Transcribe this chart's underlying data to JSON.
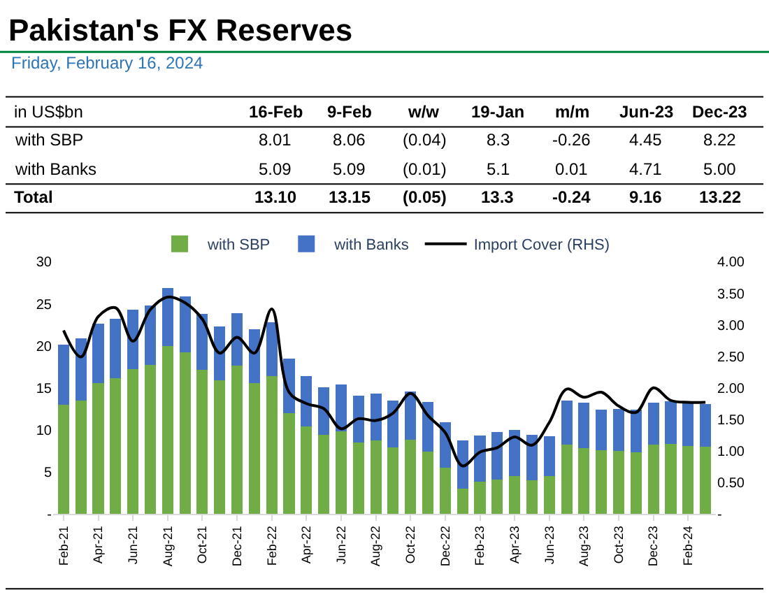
{
  "chart_data": [
    {
      "type": "other",
      "title": "Pakistan's FX Reserves",
      "subtitle": "Friday, February 16, 2024",
      "annotations": [
        "in US$bn"
      ],
      "categories": [
        "16-Feb",
        "9-Feb",
        "w/w",
        "19-Jan",
        "m/m",
        "Jun-23",
        "Dec-23"
      ],
      "y_categories": [
        "with SBP",
        "with Banks",
        "Total"
      ],
      "cell_labels": [
        [
          "8.01",
          "8.06",
          "(0.04)",
          "8.3",
          "-0.26",
          "4.45",
          "8.22"
        ],
        [
          "5.09",
          "5.09",
          "(0.01)",
          "5.1",
          "0.01",
          "4.71",
          "5.00"
        ],
        [
          "13.10",
          "13.15",
          "(0.05)",
          "13.3",
          "-0.24",
          "9.16",
          "13.22"
        ]
      ]
    },
    {
      "type": "bar",
      "stacked": true,
      "legend": "top",
      "grid": false,
      "marker": "none",
      "categories": [
        "Feb-21",
        null,
        "Apr-21",
        null,
        "Jun-21",
        null,
        "Aug-21",
        null,
        "Oct-21",
        null,
        "Dec-21",
        null,
        "Feb-22",
        null,
        "Apr-22",
        null,
        "Jun-22",
        null,
        "Aug-22",
        null,
        "Oct-22",
        null,
        "Dec-22",
        null,
        "Feb-23",
        null,
        "Apr-23",
        null,
        "Jun-23",
        null,
        "Aug-23",
        null,
        "Oct-23",
        null,
        "Dec-23",
        null,
        "Feb-24",
        null
      ],
      "ylim": [
        0,
        30
      ],
      "yticks": [
        {
          "value": 0,
          "label": "-"
        },
        5,
        10,
        15,
        20,
        25,
        30
      ],
      "y2lim": [
        0,
        4
      ],
      "y2ticks": [
        {
          "value": 0,
          "label": "-"
        },
        {
          "value": 0.5,
          "label": "0.50"
        },
        {
          "value": 1,
          "label": "1.00"
        },
        {
          "value": 1.5,
          "label": "1.50"
        },
        {
          "value": 2,
          "label": "2.00"
        },
        {
          "value": 2.5,
          "label": "2.50"
        },
        {
          "value": 3,
          "label": "3.00"
        },
        {
          "value": 3.5,
          "label": "3.50"
        },
        {
          "value": 4,
          "label": "4.00"
        }
      ],
      "series": [
        {
          "name": "with SBP",
          "type": "bar",
          "color": "#70ad47",
          "values": [
            13.0,
            13.5,
            15.6,
            16.1,
            17.2,
            17.7,
            20.0,
            19.2,
            17.1,
            15.9,
            17.6,
            15.6,
            16.4,
            12.0,
            10.4,
            9.4,
            9.8,
            8.5,
            8.7,
            7.9,
            8.8,
            7.4,
            5.5,
            3.0,
            3.8,
            4.1,
            4.5,
            4.0,
            4.5,
            8.2,
            7.8,
            7.6,
            7.5,
            7.3,
            8.2,
            8.3,
            8.1,
            8.0
          ]
        },
        {
          "name": "with Banks",
          "type": "bar",
          "color": "#4472c4",
          "values": [
            7.1,
            7.4,
            7.0,
            7.1,
            7.1,
            7.1,
            6.9,
            6.7,
            6.7,
            6.4,
            6.3,
            6.4,
            6.4,
            6.5,
            6.0,
            5.7,
            5.6,
            5.6,
            5.6,
            5.6,
            5.8,
            5.9,
            5.4,
            5.7,
            5.5,
            5.6,
            5.5,
            5.4,
            4.7,
            5.3,
            5.4,
            4.8,
            5.0,
            5.1,
            5.0,
            5.1,
            5.1,
            5.1
          ]
        },
        {
          "name": "Import Cover (RHS)",
          "type": "line",
          "axis": "y2",
          "color": "#000000",
          "values": [
            2.91,
            2.49,
            3.13,
            3.27,
            2.74,
            3.24,
            3.44,
            3.35,
            3.09,
            2.55,
            2.8,
            2.55,
            3.25,
            1.93,
            1.75,
            1.67,
            1.35,
            1.51,
            1.48,
            1.6,
            1.91,
            1.56,
            1.29,
            0.76,
            0.98,
            1.05,
            1.22,
            1.09,
            1.45,
            1.98,
            1.85,
            1.93,
            1.71,
            1.61,
            2.0,
            1.8,
            1.77,
            1.77
          ]
        }
      ]
    }
  ]
}
